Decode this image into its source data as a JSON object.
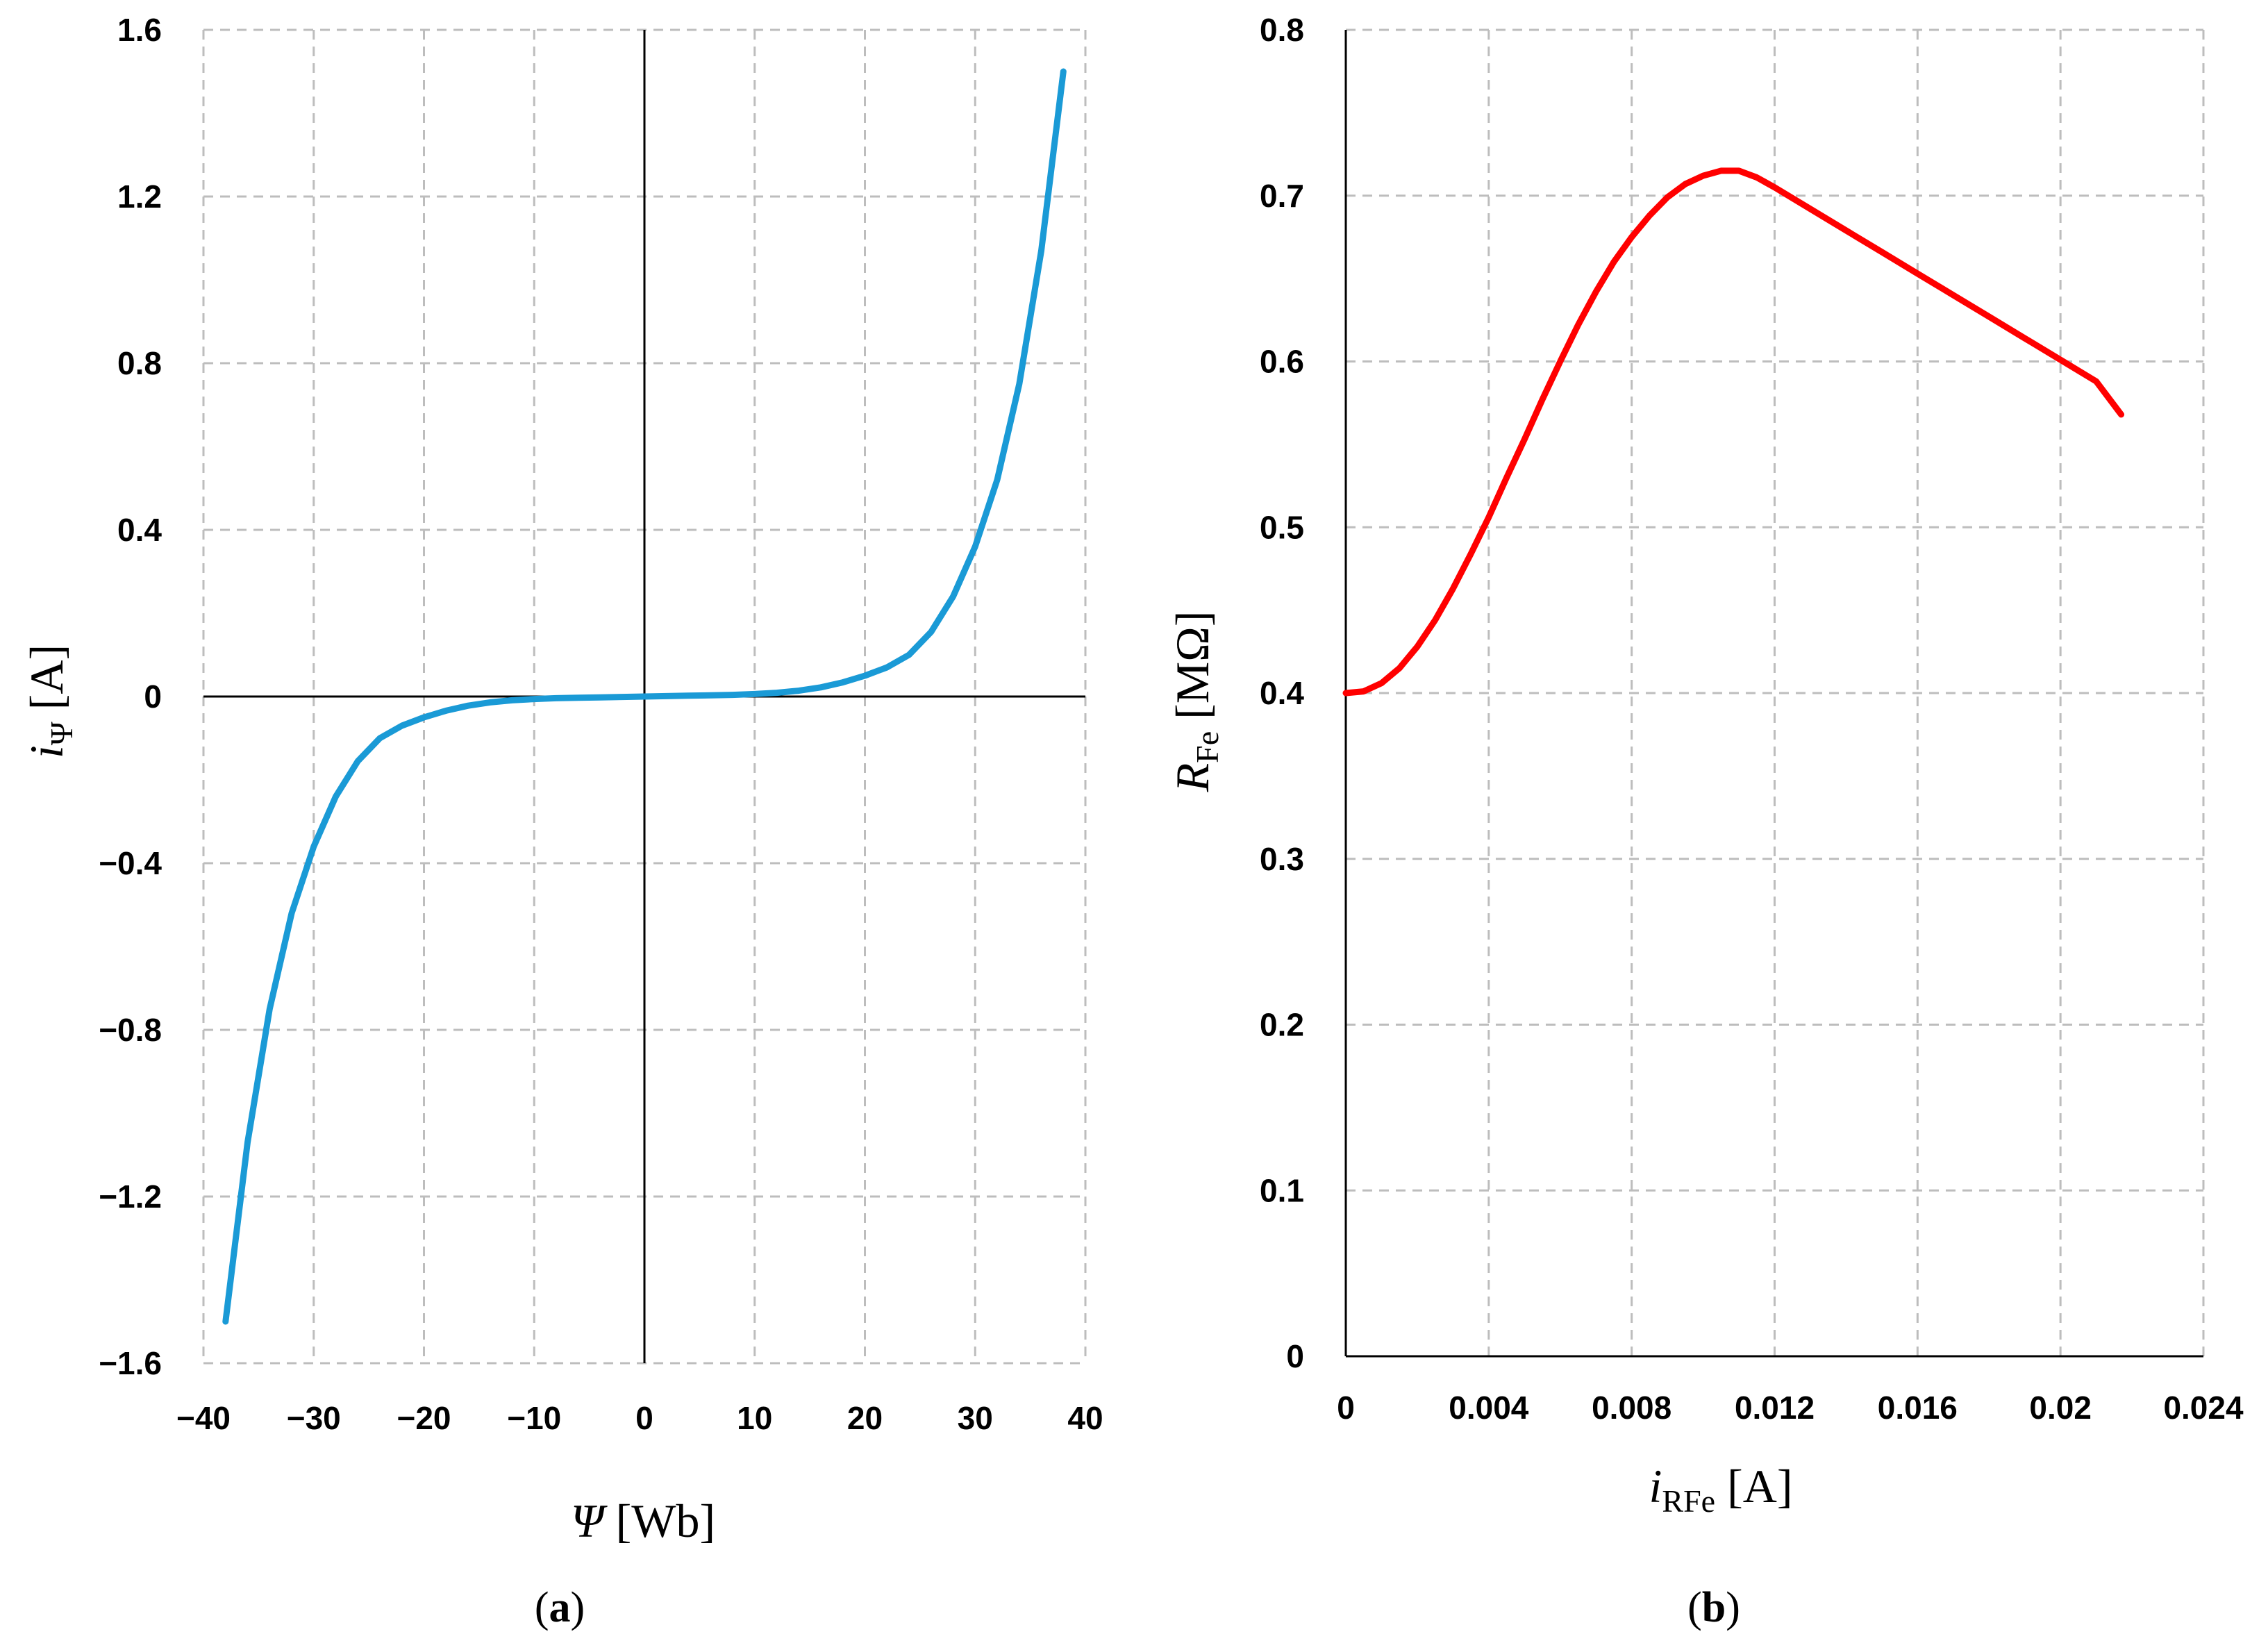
{
  "colors": {
    "series_a": "#1a9ad6",
    "series_b": "#ff0000",
    "axis": "#000000",
    "grid": "#bdbdbd"
  },
  "chart_data": [
    {
      "type": "line",
      "caption": {
        "open": "(",
        "letter": "a",
        "close": ")"
      },
      "xlabel": {
        "symbol": "Ψ",
        "unit": "[Wb]"
      },
      "ylabel": {
        "symbol": "i",
        "sub": "Ψ",
        "unit": "[A]"
      },
      "xlim": [
        -40,
        40
      ],
      "ylim": [
        -1.6,
        1.6
      ],
      "xticks": [
        -40,
        -30,
        -20,
        -10,
        0,
        10,
        20,
        30,
        40
      ],
      "yticks": [
        -1.6,
        -1.2,
        -0.8,
        -0.4,
        0,
        0.4,
        0.8,
        1.2,
        1.6
      ],
      "xtick_labels": [
        "−40",
        "−30",
        "−20",
        "−10",
        "0",
        "10",
        "20",
        "30",
        "40"
      ],
      "ytick_labels": [
        "−1.6",
        "−1.2",
        "−0.8",
        "−0.4",
        "0",
        "0.4",
        "0.8",
        "1.2",
        "1.6"
      ],
      "grid": true,
      "series": [
        {
          "name": "i_Ψ(Ψ)",
          "x": [
            -38,
            -36,
            -34,
            -32,
            -30,
            -28,
            -26,
            -24,
            -22,
            -20,
            -18,
            -16,
            -14,
            -12,
            -10,
            -8,
            -6,
            -4,
            -2,
            0,
            2,
            4,
            6,
            8,
            10,
            12,
            14,
            16,
            18,
            20,
            22,
            24,
            26,
            28,
            30,
            32,
            34,
            36,
            38
          ],
          "y": [
            -1.5,
            -1.07,
            -0.75,
            -0.52,
            -0.36,
            -0.24,
            -0.155,
            -0.1,
            -0.07,
            -0.05,
            -0.034,
            -0.022,
            -0.014,
            -0.009,
            -0.006,
            -0.004,
            -0.003,
            -0.002,
            -0.001,
            0,
            0.001,
            0.002,
            0.003,
            0.004,
            0.006,
            0.009,
            0.014,
            0.022,
            0.034,
            0.05,
            0.07,
            0.1,
            0.155,
            0.24,
            0.36,
            0.52,
            0.75,
            1.07,
            1.5
          ]
        }
      ]
    },
    {
      "type": "line",
      "caption": {
        "open": "(",
        "letter": "b",
        "close": ")"
      },
      "xlabel": {
        "symbol": "i",
        "sub": "RFe",
        "unit": "[A]"
      },
      "ylabel": {
        "symbol": "R",
        "sub": "Fe",
        "unit": "[MΩ]"
      },
      "xlim": [
        0,
        0.024
      ],
      "ylim": [
        0,
        0.8
      ],
      "xticks": [
        0,
        0.004,
        0.008,
        0.012,
        0.016,
        0.02,
        0.024
      ],
      "yticks": [
        0,
        0.1,
        0.2,
        0.3,
        0.4,
        0.5,
        0.6,
        0.7,
        0.8
      ],
      "xtick_labels": [
        "0",
        "0.004",
        "0.008",
        "0.012",
        "0.016",
        "0.02",
        "0.024"
      ],
      "ytick_labels": [
        "0",
        "0.1",
        "0.2",
        "0.3",
        "0.4",
        "0.5",
        "0.6",
        "0.7",
        "0.8"
      ],
      "grid": true,
      "series": [
        {
          "name": "R_Fe(i_RFe)",
          "x": [
            0,
            0.0005,
            0.001,
            0.0015,
            0.002,
            0.0025,
            0.003,
            0.0035,
            0.004,
            0.0045,
            0.005,
            0.0055,
            0.006,
            0.0065,
            0.007,
            0.0075,
            0.008,
            0.0085,
            0.009,
            0.0095,
            0.01,
            0.0105,
            0.011,
            0.0115,
            0.012,
            0.013,
            0.014,
            0.015,
            0.016,
            0.017,
            0.018,
            0.019,
            0.02,
            0.021,
            0.0217
          ],
          "y": [
            0.4,
            0.401,
            0.406,
            0.415,
            0.428,
            0.444,
            0.463,
            0.484,
            0.506,
            0.53,
            0.553,
            0.577,
            0.6,
            0.622,
            0.642,
            0.66,
            0.675,
            0.688,
            0.699,
            0.707,
            0.712,
            0.715,
            0.715,
            0.711,
            0.705,
            0.692,
            0.679,
            0.666,
            0.653,
            0.64,
            0.627,
            0.614,
            0.601,
            0.588,
            0.568
          ]
        }
      ]
    }
  ]
}
